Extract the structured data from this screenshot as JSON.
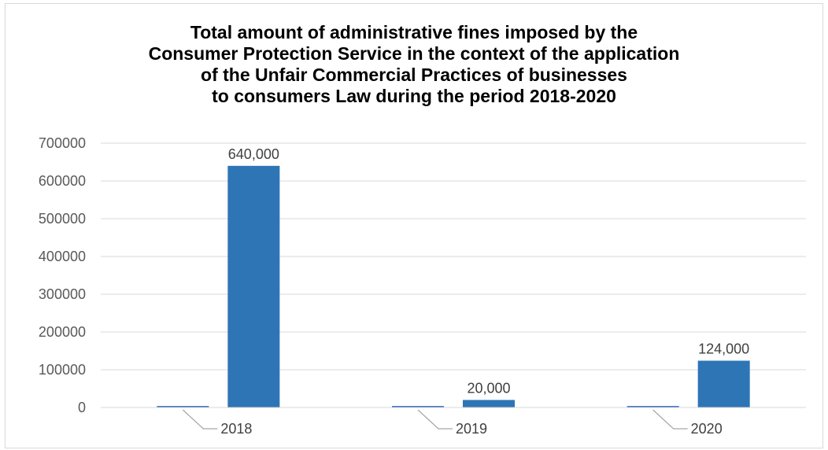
{
  "chart_data": {
    "type": "bar",
    "title_lines": [
      "Total amount of administrative fines imposed by the",
      "Consumer Protection Service in the context of the application",
      "of the Unfair Commercial Practices of businesses",
      "to consumers Law during the period 2018-2020"
    ],
    "categories": [
      "2018",
      "2019",
      "2020"
    ],
    "series": [
      {
        "values": [
          0,
          0,
          0
        ],
        "color": "#4472c4"
      },
      {
        "values": [
          640000,
          20000,
          124000
        ],
        "color": "#2e75b6"
      }
    ],
    "data_labels": [
      "640,000",
      "20,000",
      "124,000"
    ],
    "ylim": [
      0,
      700000
    ],
    "yticks": [
      0,
      100000,
      200000,
      300000,
      400000,
      500000,
      600000,
      700000
    ],
    "grid": true,
    "gridline_color": "#d9d9d9",
    "leader_line_color": "#a6a6a6",
    "legend": "none"
  }
}
